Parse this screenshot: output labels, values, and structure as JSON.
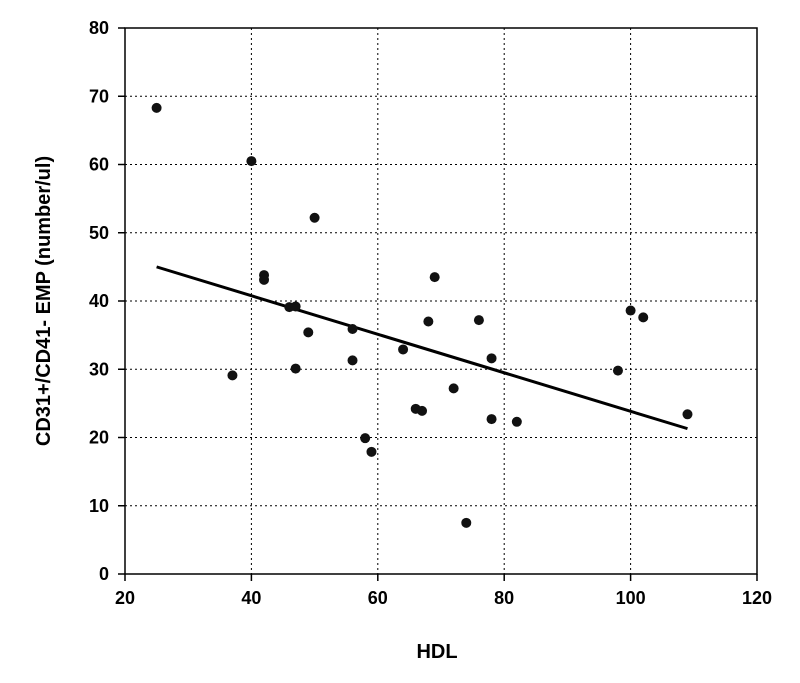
{
  "chart_data": {
    "type": "scatter",
    "xlabel": "HDL",
    "ylabel": "CD31+/CD41-  EMP (number/ul)",
    "xlim": [
      20,
      120
    ],
    "ylim": [
      0,
      80
    ],
    "xticks": [
      20,
      40,
      60,
      80,
      100,
      120
    ],
    "yticks": [
      0,
      10,
      20,
      30,
      40,
      50,
      60,
      70,
      80
    ],
    "grid": true,
    "legend": "none",
    "series": [
      {
        "points": [
          [
            25,
            68.3
          ],
          [
            37,
            29.1
          ],
          [
            40,
            60.5
          ],
          [
            42,
            43.8
          ],
          [
            42,
            43.1
          ],
          [
            46,
            39.1
          ],
          [
            47,
            39.2
          ],
          [
            47,
            30.1
          ],
          [
            49,
            35.4
          ],
          [
            50,
            52.2
          ],
          [
            56,
            35.9
          ],
          [
            56,
            31.3
          ],
          [
            58,
            19.9
          ],
          [
            59,
            17.9
          ],
          [
            64,
            32.9
          ],
          [
            66,
            24.2
          ],
          [
            67,
            23.9
          ],
          [
            68,
            37.0
          ],
          [
            69,
            43.5
          ],
          [
            72,
            27.2
          ],
          [
            74,
            7.5
          ],
          [
            76,
            37.2
          ],
          [
            78,
            31.6
          ],
          [
            78,
            22.7
          ],
          [
            82,
            22.3
          ],
          [
            98,
            29.8
          ],
          [
            100,
            38.6
          ],
          [
            102,
            37.6
          ],
          [
            109,
            23.4
          ]
        ]
      }
    ],
    "trendline": {
      "x": [
        25,
        109
      ],
      "y": [
        45.0,
        21.3
      ]
    },
    "colors": {
      "marker": "#111111",
      "line": "#000000"
    }
  }
}
